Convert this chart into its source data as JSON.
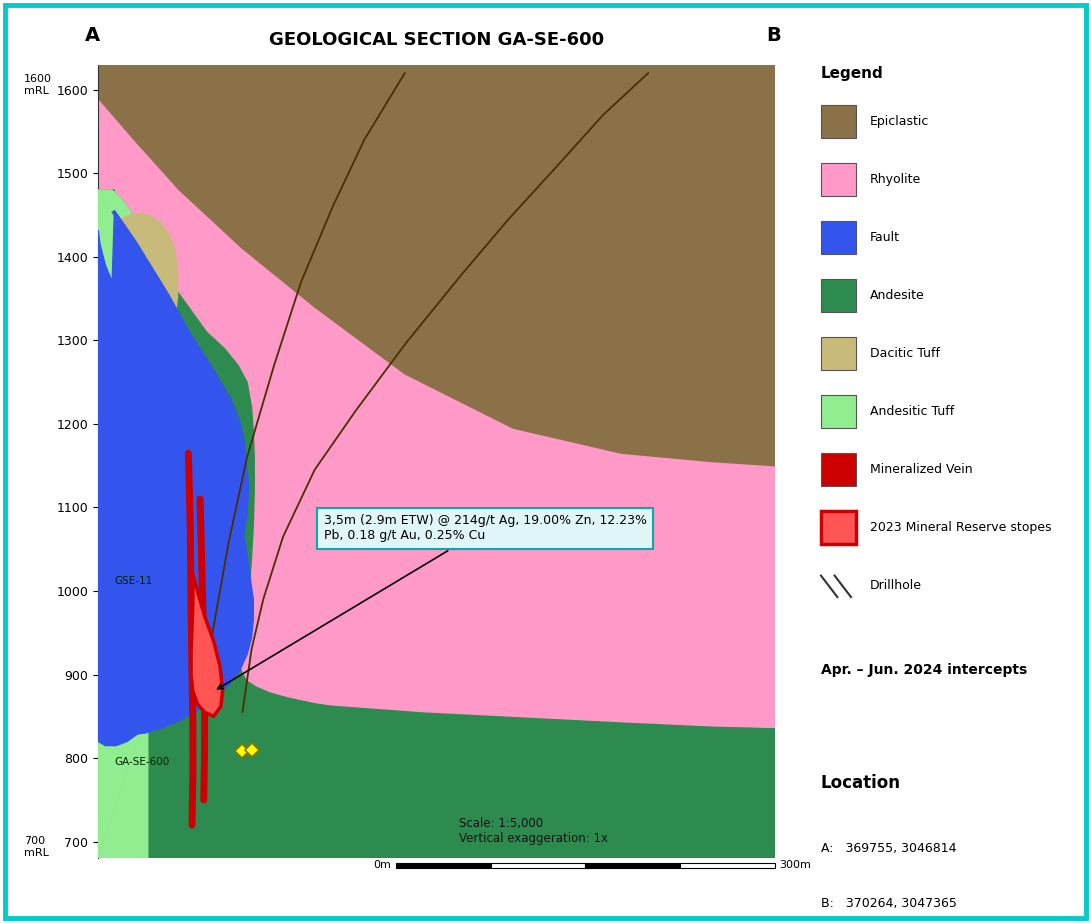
{
  "title": "GEOLOGICAL SECTION GA-SE-600",
  "label_A": "A",
  "label_B": "B",
  "ylim": [
    680,
    1630
  ],
  "xlim": [
    0,
    750
  ],
  "yticks": [
    700,
    800,
    900,
    1000,
    1100,
    1200,
    1300,
    1400,
    1500,
    1600
  ],
  "colors": {
    "epiclastic": "#8B7148",
    "rhyolite": "#FF99C8",
    "fault_fill": "#3355EE",
    "andesite": "#2E8B50",
    "dacitic_tuff": "#C8BA78",
    "andesitic_tuff": "#90EE90",
    "mineralized_vein": "#CC0000",
    "reserve_stopes_fill": "#FF5555",
    "reserve_stopes_edge": "#CC0000",
    "background": "#FFFFFF",
    "border": "#00CCCC",
    "grid": "#888888",
    "drillhole_line": "#4A3000"
  },
  "intercept_text": "3,5m (2.9m ETW) @ 214g/t Ag, 19.00% Zn, 12.23%\nPb, 0.18 g/t Au, 0.25% Cu",
  "location_title": "Location",
  "location_A": "A:   369755, 3046814",
  "location_B": "B:   370264, 3047365",
  "scale_text": "Scale: 1:5,000",
  "vert_exag_text": "Vertical exaggeration: 1x",
  "scale_bar_label_left": "0m",
  "scale_bar_label_right": "300m",
  "drillhole_label1": "GSE-11",
  "drillhole_label2": "GA-SE-600",
  "apr_jun_text": "Apr. – Jun. 2024 intercepts"
}
